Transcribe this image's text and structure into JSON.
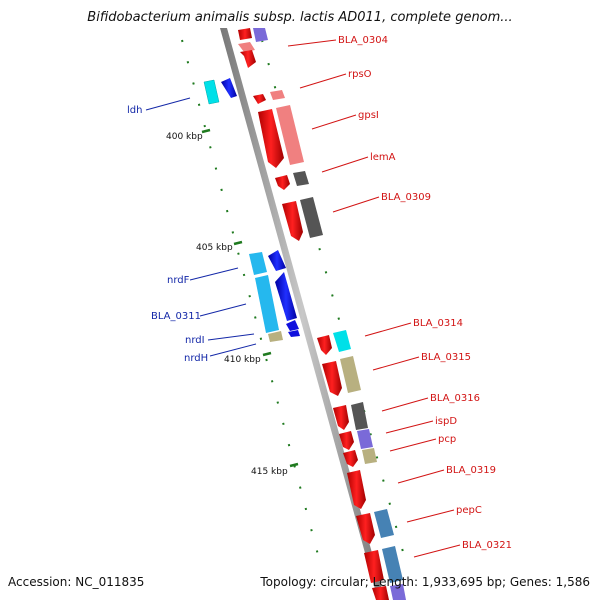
{
  "title": "Bifidobacterium animalis subsp. lactis AD011, complete genom...",
  "footer": {
    "accession": "Accession: NC_011835",
    "summary": "Topology: circular; Length: 1,933,695 bp; Genes: 1,586"
  },
  "ticks": [
    {
      "label": "400 kbp"
    },
    {
      "label": "405 kbp"
    },
    {
      "label": "410 kbp"
    },
    {
      "label": "415 kbp"
    }
  ],
  "genes": [
    {
      "name": "BLA_0304",
      "strand": "forward",
      "color": "#ee1111"
    },
    {
      "name": "rpsO",
      "strand": "forward",
      "color": "#ee1111"
    },
    {
      "name": "gpsI",
      "strand": "forward",
      "color": "#ee1111"
    },
    {
      "name": "lemA",
      "strand": "forward",
      "color": "#ee1111"
    },
    {
      "name": "BLA_0309",
      "strand": "forward",
      "color": "#ee1111"
    },
    {
      "name": "ldh",
      "strand": "reverse",
      "color": "#1010dd"
    },
    {
      "name": "nrdF",
      "strand": "reverse",
      "color": "#1010dd"
    },
    {
      "name": "BLA_0311",
      "strand": "reverse",
      "color": "#1010dd"
    },
    {
      "name": "nrdI",
      "strand": "reverse",
      "color": "#1010dd"
    },
    {
      "name": "nrdH",
      "strand": "reverse",
      "color": "#1010dd"
    },
    {
      "name": "BLA_0314",
      "strand": "forward",
      "color": "#ee1111"
    },
    {
      "name": "BLA_0315",
      "strand": "forward",
      "color": "#ee1111"
    },
    {
      "name": "BLA_0316",
      "strand": "forward",
      "color": "#ee1111"
    },
    {
      "name": "ispD",
      "strand": "forward",
      "color": "#ee1111"
    },
    {
      "name": "pcp",
      "strand": "forward",
      "color": "#ee1111"
    },
    {
      "name": "BLA_0319",
      "strand": "forward",
      "color": "#ee1111"
    },
    {
      "name": "pepC",
      "strand": "forward",
      "color": "#ee1111"
    },
    {
      "name": "BLA_0321",
      "strand": "forward",
      "color": "#ee1111"
    }
  ],
  "colors": {
    "forward_label": "#d21414",
    "reverse_label": "#1428a8",
    "backbone": "#8a8a8a",
    "tick": "#1f7a1f",
    "cog_pink": "#f08080",
    "cog_gray": "#555555",
    "cog_cyan": "#00e0e8",
    "cog_khaki": "#b8b080",
    "cog_purple": "#7a6ad8",
    "cog_steel": "#4682b4",
    "cog_skyblue": "#25b8ee"
  }
}
